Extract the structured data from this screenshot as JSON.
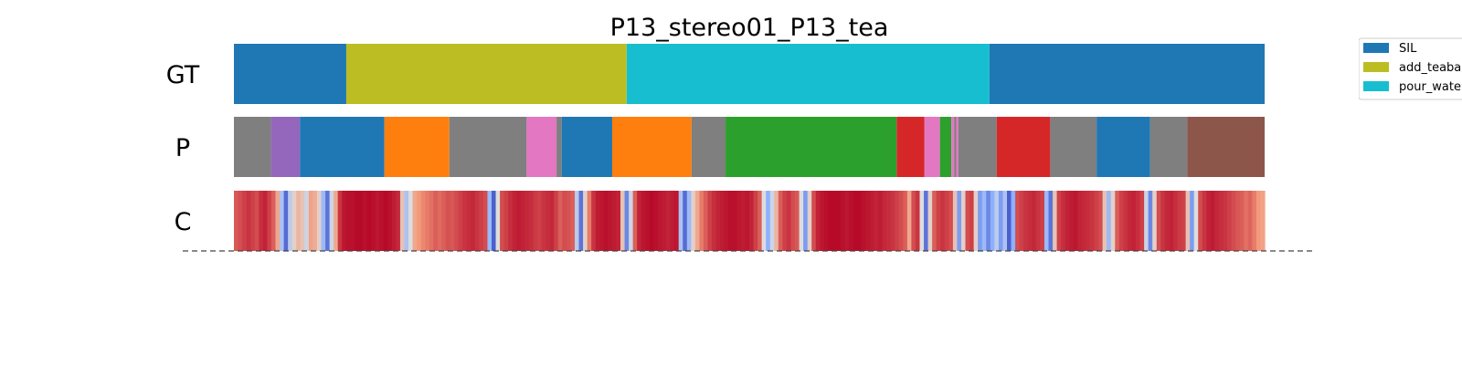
{
  "chart_data": {
    "type": "segmentation",
    "title": "P13_stereo01_P13_tea",
    "rows": [
      {
        "label": "GT",
        "segments": [
          {
            "start": 0.0,
            "end": 0.109,
            "action": "SIL",
            "color": "#1f77b4"
          },
          {
            "start": 0.109,
            "end": 0.381,
            "action": "add_teabag",
            "color": "#bcbd22"
          },
          {
            "start": 0.381,
            "end": 0.733,
            "action": "pour_water",
            "color": "#17becf"
          },
          {
            "start": 0.733,
            "end": 1.0,
            "action": "SIL",
            "color": "#1f77b4"
          }
        ]
      },
      {
        "label": "P",
        "segments": [
          {
            "start": 0.0,
            "end": 0.036,
            "color": "#7f7f7f"
          },
          {
            "start": 0.036,
            "end": 0.064,
            "color": "#9467bd"
          },
          {
            "start": 0.064,
            "end": 0.146,
            "color": "#1f77b4"
          },
          {
            "start": 0.146,
            "end": 0.209,
            "color": "#ff7f0e"
          },
          {
            "start": 0.209,
            "end": 0.284,
            "color": "#7f7f7f"
          },
          {
            "start": 0.284,
            "end": 0.313,
            "color": "#e377c2"
          },
          {
            "start": 0.313,
            "end": 0.318,
            "color": "#7f7f7f"
          },
          {
            "start": 0.318,
            "end": 0.367,
            "color": "#1f77b4"
          },
          {
            "start": 0.367,
            "end": 0.444,
            "color": "#ff7f0e"
          },
          {
            "start": 0.444,
            "end": 0.477,
            "color": "#7f7f7f"
          },
          {
            "start": 0.477,
            "end": 0.643,
            "color": "#2ca02c"
          },
          {
            "start": 0.643,
            "end": 0.67,
            "color": "#d62728"
          },
          {
            "start": 0.67,
            "end": 0.685,
            "color": "#e377c2"
          },
          {
            "start": 0.685,
            "end": 0.696,
            "color": "#2ca02c"
          },
          {
            "start": 0.696,
            "end": 0.699,
            "color": "#e377c2"
          },
          {
            "start": 0.699,
            "end": 0.701,
            "color": "#7f7f7f"
          },
          {
            "start": 0.701,
            "end": 0.703,
            "color": "#e377c2"
          },
          {
            "start": 0.703,
            "end": 0.74,
            "color": "#7f7f7f"
          },
          {
            "start": 0.74,
            "end": 0.792,
            "color": "#d62728"
          },
          {
            "start": 0.792,
            "end": 0.837,
            "color": "#7f7f7f"
          },
          {
            "start": 0.837,
            "end": 0.889,
            "color": "#1f77b4"
          },
          {
            "start": 0.889,
            "end": 0.925,
            "color": "#7f7f7f"
          },
          {
            "start": 0.925,
            "end": 1.0,
            "color": "#8c564b"
          }
        ]
      },
      {
        "label": "C",
        "colormap": "coolwarm",
        "confidence": [
          0.86,
          0.88,
          0.9,
          0.92,
          0.9,
          0.88,
          0.93,
          0.95,
          0.9,
          0.85,
          0.7,
          0.35,
          0.08,
          0.4,
          0.55,
          0.65,
          0.6,
          0.45,
          0.72,
          0.68,
          0.55,
          0.3,
          0.1,
          0.45,
          0.7,
          0.92,
          0.97,
          0.98,
          0.98,
          0.99,
          0.99,
          0.98,
          0.99,
          0.98,
          0.97,
          0.98,
          0.99,
          0.98,
          0.96,
          0.94,
          0.6,
          0.35,
          0.5,
          0.7,
          0.75,
          0.78,
          0.8,
          0.82,
          0.85,
          0.83,
          0.85,
          0.87,
          0.86,
          0.88,
          0.9,
          0.92,
          0.93,
          0.94,
          0.92,
          0.9,
          0.88,
          0.3,
          0.05,
          0.5,
          0.88,
          0.9,
          0.93,
          0.95,
          0.96,
          0.95,
          0.94,
          0.93,
          0.91,
          0.9,
          0.92,
          0.93,
          0.94,
          0.9,
          0.85,
          0.88,
          0.87,
          0.85,
          0.4,
          0.1,
          0.55,
          0.8,
          0.92,
          0.96,
          0.97,
          0.98,
          0.97,
          0.96,
          0.95,
          0.6,
          0.15,
          0.45,
          0.85,
          0.95,
          0.97,
          0.98,
          0.99,
          0.98,
          0.97,
          0.96,
          0.95,
          0.96,
          0.97,
          0.35,
          0.08,
          0.3,
          0.55,
          0.7,
          0.8,
          0.85,
          0.9,
          0.93,
          0.95,
          0.96,
          0.97,
          0.98,
          0.98,
          0.97,
          0.96,
          0.97,
          0.95,
          0.9,
          0.85,
          0.5,
          0.25,
          0.45,
          0.65,
          0.85,
          0.9,
          0.92,
          0.88,
          0.86,
          0.5,
          0.2,
          0.55,
          0.88,
          0.95,
          0.97,
          0.98,
          0.99,
          0.99,
          0.99,
          0.98,
          0.97,
          0.98,
          0.99,
          0.99,
          0.98,
          0.97,
          0.96,
          0.95,
          0.96,
          0.94,
          0.93,
          0.92,
          0.9,
          0.88,
          0.85,
          0.7,
          0.88,
          0.92,
          0.5,
          0.1,
          0.55,
          0.85,
          0.9,
          0.92,
          0.9,
          0.88,
          0.6,
          0.2,
          0.55,
          0.88,
          0.9,
          0.55,
          0.2,
          0.3,
          0.15,
          0.25,
          0.4,
          0.2,
          0.35,
          0.05,
          0.25,
          0.88,
          0.9,
          0.92,
          0.93,
          0.94,
          0.92,
          0.9,
          0.3,
          0.1,
          0.6,
          0.9,
          0.93,
          0.95,
          0.96,
          0.97,
          0.95,
          0.94,
          0.93,
          0.92,
          0.9,
          0.88,
          0.6,
          0.3,
          0.55,
          0.85,
          0.9,
          0.92,
          0.94,
          0.95,
          0.93,
          0.9,
          0.45,
          0.15,
          0.55,
          0.88,
          0.92,
          0.94,
          0.95,
          0.93,
          0.91,
          0.9,
          0.6,
          0.2,
          0.5,
          0.88,
          0.92,
          0.95,
          0.96,
          0.94,
          0.93,
          0.92,
          0.9,
          0.88,
          0.86,
          0.85,
          0.82,
          0.84,
          0.8,
          0.75,
          0.72
        ]
      }
    ],
    "legend": {
      "entries": [
        {
          "label": "SIL",
          "color": "#1f77b4"
        },
        {
          "label": "add_teabag",
          "color": "#bcbd22"
        },
        {
          "label": "pour_water",
          "color": "#17becf"
        }
      ],
      "placement": "top-right"
    }
  }
}
